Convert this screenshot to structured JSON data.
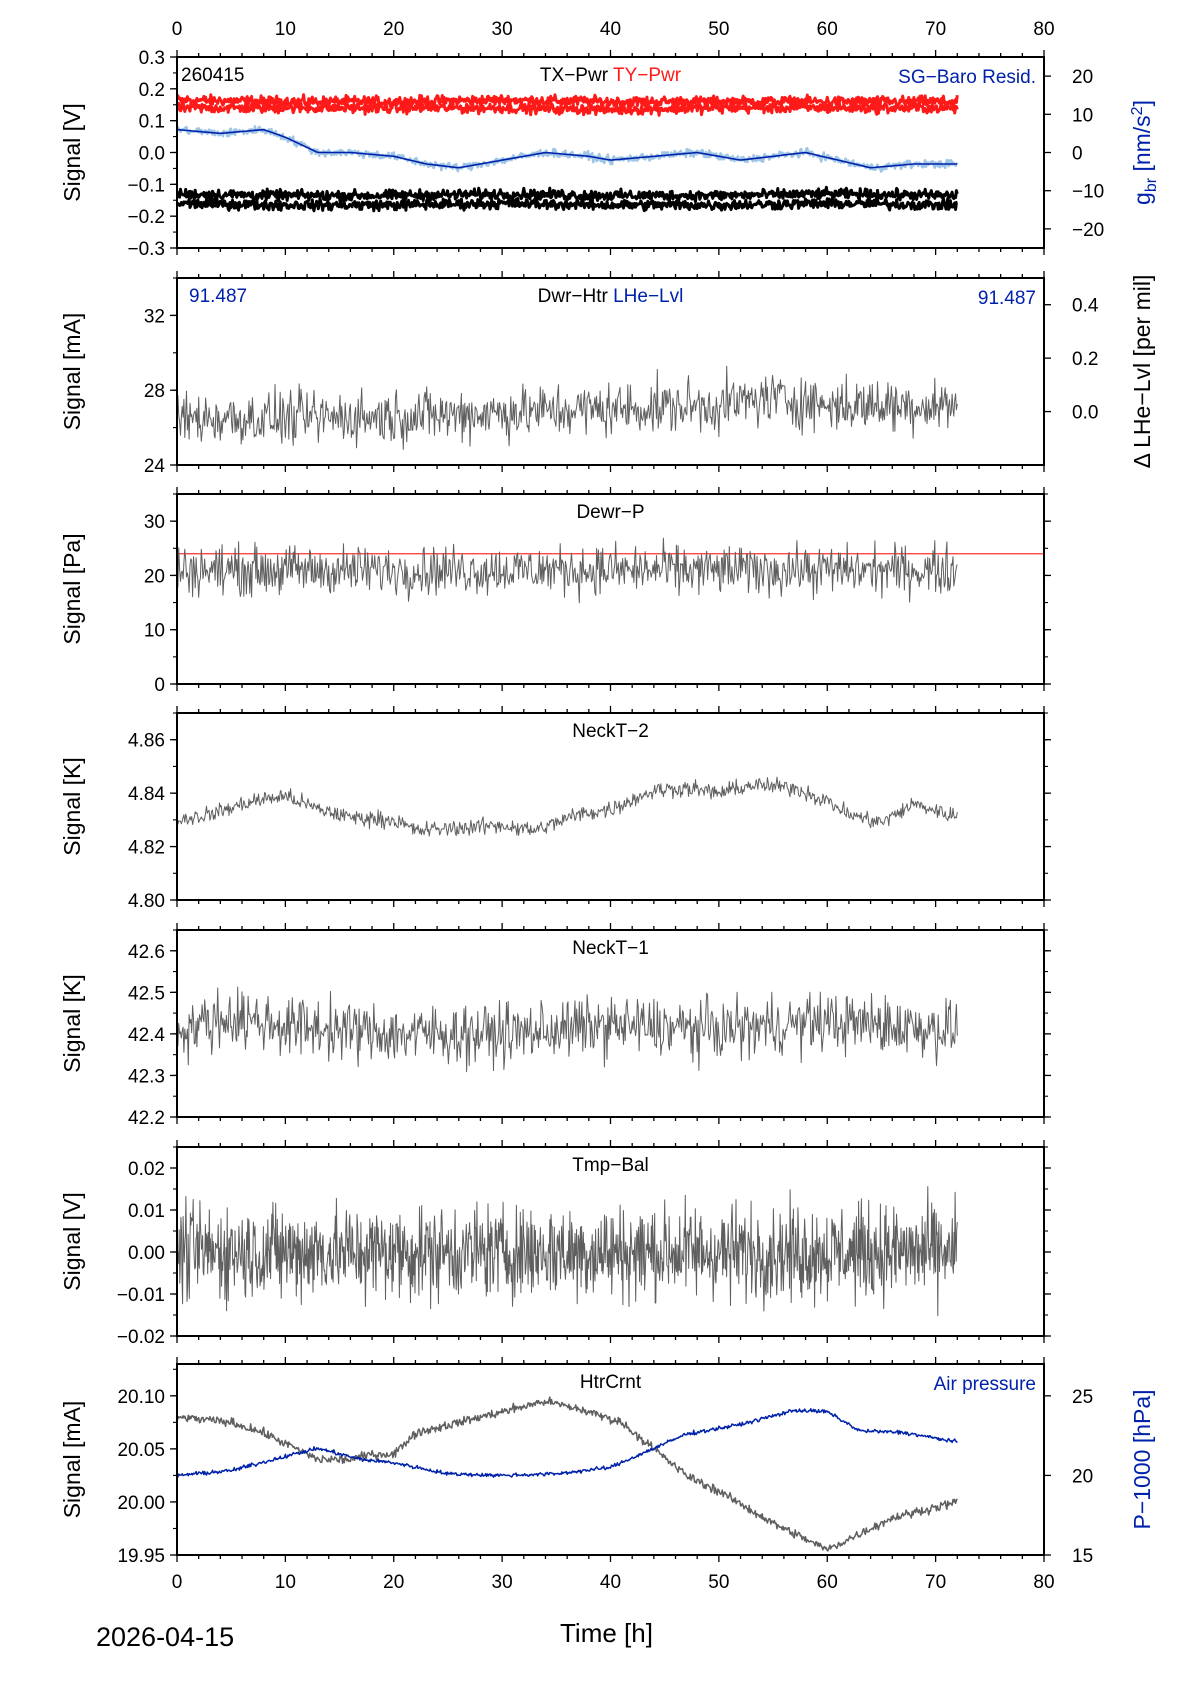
{
  "date_label": "2026-04-15",
  "time_axis": {
    "label": "Time [h]",
    "range": [
      0,
      80
    ],
    "ticks": [
      0,
      10,
      20,
      30,
      40,
      50,
      60,
      70,
      80
    ]
  },
  "colors": {
    "trace": "#5f5f5f",
    "red": "#ff1a1a",
    "blue": "#0022aa",
    "lightblue": "#9fc6e6",
    "black": "#000000",
    "refline": "#ff3030"
  },
  "chart_data": [
    {
      "id": "p1",
      "type": "line",
      "title_parts": [
        {
          "text": "TX−Pwr",
          "color": "#000000"
        },
        {
          "text": "TY−Pwr",
          "color": "#ff1a1a"
        }
      ],
      "corner_label_left": "260415",
      "corner_label_right": "SG−Baro Resid.",
      "ylabel": "Signal [V]",
      "ylim": [
        -0.3,
        0.3
      ],
      "yticks": [
        -0.3,
        -0.2,
        -0.1,
        0.0,
        0.1,
        0.2,
        0.3
      ],
      "ytick_labels": [
        "−0.3",
        "−0.2",
        "−0.1",
        "0.0",
        "0.1",
        "0.2",
        "0.3"
      ],
      "y2label": "g_br [nm/s^2]",
      "y2lim": [
        -25,
        25
      ],
      "y2ticks": [
        -20,
        -10,
        0,
        10,
        20
      ],
      "y2tick_labels": [
        "−20",
        "−10",
        "0",
        "10",
        "20"
      ],
      "series": [
        {
          "name": "TY-Pwr upper",
          "axis": "left",
          "color": "#ff1a1a",
          "width": 3,
          "x": [
            0,
            10,
            20,
            30,
            40,
            50,
            60,
            72
          ],
          "y": [
            0.165,
            0.16,
            0.16,
            0.165,
            0.16,
            0.16,
            0.16,
            0.16
          ],
          "noise": 0.008
        },
        {
          "name": "TY-Pwr lower",
          "axis": "left",
          "color": "#ff1a1a",
          "width": 3,
          "x": [
            0,
            10,
            20,
            30,
            40,
            50,
            60,
            72
          ],
          "y": [
            0.14,
            0.14,
            0.14,
            0.14,
            0.135,
            0.14,
            0.14,
            0.14
          ],
          "noise": 0.008
        },
        {
          "name": "TX-Pwr upper",
          "axis": "left",
          "color": "#000000",
          "width": 3,
          "x": [
            0,
            10,
            20,
            30,
            40,
            50,
            60,
            72
          ],
          "y": [
            -0.13,
            -0.135,
            -0.135,
            -0.13,
            -0.135,
            -0.135,
            -0.13,
            -0.135
          ],
          "noise": 0.008
        },
        {
          "name": "TX-Pwr lower",
          "axis": "left",
          "color": "#000000",
          "width": 3,
          "x": [
            0,
            10,
            20,
            30,
            40,
            50,
            60,
            72
          ],
          "y": [
            -0.16,
            -0.165,
            -0.165,
            -0.16,
            -0.165,
            -0.165,
            -0.16,
            -0.165
          ],
          "noise": 0.008
        },
        {
          "name": "SG-Baro Resid. raw",
          "axis": "right",
          "color": "#9fc6e6",
          "width": 2.5,
          "x": [
            0,
            4,
            8,
            10,
            13,
            16,
            20,
            23,
            26,
            30,
            34,
            38,
            40,
            44,
            48,
            52,
            55,
            58,
            61,
            64,
            68,
            72
          ],
          "y": [
            6,
            5,
            6,
            4,
            0,
            0,
            -1,
            -3,
            -4,
            -2,
            0,
            -1,
            -2,
            -1,
            0,
            -2,
            -1,
            0,
            -2,
            -4,
            -3,
            -3
          ],
          "noise": 0.5
        },
        {
          "name": "SG-Baro Resid.",
          "axis": "right",
          "color": "#0022aa",
          "width": 1.6,
          "x": [
            0,
            4,
            8,
            10,
            13,
            16,
            20,
            23,
            26,
            30,
            34,
            38,
            40,
            44,
            48,
            52,
            55,
            58,
            61,
            64,
            68,
            72
          ],
          "y": [
            6,
            5,
            6,
            4,
            0,
            0,
            -1,
            -3,
            -4,
            -2,
            0,
            -1,
            -2,
            -1,
            0,
            -2,
            -1,
            0,
            -2,
            -4,
            -3,
            -3
          ],
          "noise": 0
        }
      ]
    },
    {
      "id": "p2",
      "type": "line",
      "title_parts": [
        {
          "text": "Dwr−Htr",
          "color": "#000000"
        },
        {
          "text": "LHe−Lvl",
          "color": "#0022aa"
        }
      ],
      "corner_label_left": "91.487",
      "corner_label_right": "91.487",
      "ylabel": "Signal [mA]",
      "ylim": [
        24,
        34
      ],
      "yticks": [
        24,
        28,
        32
      ],
      "ytick_labels": [
        "24",
        "28",
        "32"
      ],
      "y2label": "Δ LHe−Lvl [per mil]",
      "y2lim": [
        -0.2,
        0.5
      ],
      "y2ticks": [
        0.0,
        0.2,
        0.4
      ],
      "y2tick_labels": [
        "0.0",
        "0.2",
        "0.4"
      ],
      "series": [
        {
          "name": "Dwr-Htr",
          "axis": "left",
          "color": "#5f5f5f",
          "width": 1,
          "x": [
            0,
            10,
            20,
            30,
            40,
            50,
            55,
            60,
            66,
            72
          ],
          "y": [
            26.5,
            26.5,
            26.6,
            26.8,
            27.0,
            27.2,
            27.6,
            27.2,
            27.2,
            27.2
          ],
          "noise": 0.7
        }
      ]
    },
    {
      "id": "p3",
      "type": "line",
      "title_parts": [
        {
          "text": "Dewr−P",
          "color": "#000000"
        }
      ],
      "ylabel": "Signal [Pa]",
      "ylim": [
        0,
        35
      ],
      "yticks": [
        0,
        10,
        20,
        30
      ],
      "ytick_labels": [
        "0",
        "10",
        "20",
        "30"
      ],
      "reference_line": {
        "y": 24,
        "color": "#ff3030"
      },
      "series": [
        {
          "name": "Dewr-P",
          "axis": "left",
          "color": "#5f5f5f",
          "width": 1,
          "x": [
            0,
            72
          ],
          "y": [
            21,
            21
          ],
          "noise": 2.2
        }
      ]
    },
    {
      "id": "p4",
      "type": "line",
      "title_parts": [
        {
          "text": "NeckT−2",
          "color": "#000000"
        }
      ],
      "ylabel": "Signal [K]",
      "ylim": [
        4.8,
        4.87
      ],
      "yticks": [
        4.8,
        4.82,
        4.84,
        4.86
      ],
      "ytick_labels": [
        "4.80",
        "4.82",
        "4.84",
        "4.86"
      ],
      "series": [
        {
          "name": "NeckT-2",
          "axis": "left",
          "color": "#5f5f5f",
          "width": 1,
          "x": [
            0,
            3,
            7,
            10,
            13,
            16,
            20,
            22,
            26,
            30,
            33,
            37,
            40,
            44,
            47,
            50,
            53,
            57,
            60,
            62,
            65,
            68,
            72
          ],
          "y": [
            4.83,
            4.832,
            4.837,
            4.839,
            4.834,
            4.831,
            4.83,
            4.826,
            4.827,
            4.828,
            4.826,
            4.832,
            4.834,
            4.841,
            4.842,
            4.84,
            4.843,
            4.842,
            4.837,
            4.832,
            4.829,
            4.836,
            4.831
          ],
          "noise": 0.0015
        }
      ]
    },
    {
      "id": "p5",
      "type": "line",
      "title_parts": [
        {
          "text": "NeckT−1",
          "color": "#000000"
        }
      ],
      "ylabel": "Signal [K]",
      "ylim": [
        42.2,
        42.65
      ],
      "yticks": [
        42.2,
        42.3,
        42.4,
        42.5,
        42.6
      ],
      "ytick_labels": [
        "42.2",
        "42.3",
        "42.4",
        "42.5",
        "42.6"
      ],
      "series": [
        {
          "name": "NeckT-1",
          "axis": "left",
          "color": "#5f5f5f",
          "width": 1,
          "x": [
            0,
            5,
            10,
            20,
            30,
            40,
            50,
            60,
            72
          ],
          "y": [
            42.41,
            42.44,
            42.42,
            42.4,
            42.4,
            42.42,
            42.41,
            42.43,
            42.41
          ],
          "noise": 0.035
        }
      ]
    },
    {
      "id": "p6",
      "type": "line",
      "title_parts": [
        {
          "text": "Tmp−Bal",
          "color": "#000000"
        }
      ],
      "ylabel": "Signal [V]",
      "ylim": [
        -0.02,
        0.025
      ],
      "yticks": [
        -0.02,
        -0.01,
        0.0,
        0.01,
        0.02
      ],
      "ytick_labels": [
        "−0.02",
        "−0.01",
        "0.00",
        "0.01",
        "0.02"
      ],
      "series": [
        {
          "name": "Tmp-Bal",
          "axis": "left",
          "color": "#5f5f5f",
          "width": 1,
          "x": [
            0,
            72
          ],
          "y": [
            0.0,
            0.0
          ],
          "noise": 0.0055,
          "dense": true
        }
      ]
    },
    {
      "id": "p7",
      "type": "line",
      "title_parts": [
        {
          "text": "HtrCrnt",
          "color": "#000000"
        }
      ],
      "corner_label_right": "Air pressure",
      "ylabel": "Signal [mA]",
      "ylim": [
        19.95,
        20.13
      ],
      "yticks": [
        19.95,
        20.0,
        20.05,
        20.1
      ],
      "ytick_labels": [
        "19.95",
        "20.00",
        "20.05",
        "20.10"
      ],
      "y2label": "P−1000 [hPa]",
      "y2lim": [
        15,
        27
      ],
      "y2ticks": [
        15,
        20,
        25
      ],
      "y2tick_labels": [
        "15",
        "20",
        "25"
      ],
      "series": [
        {
          "name": "HtrCrnt",
          "axis": "left",
          "color": "#5f5f5f",
          "width": 1.5,
          "x": [
            0,
            5,
            8,
            10,
            13,
            16,
            18,
            20,
            22,
            26,
            30,
            34,
            38,
            41,
            44,
            47,
            50,
            55,
            58,
            60,
            63,
            66,
            70,
            72
          ],
          "y": [
            20.08,
            20.075,
            20.065,
            20.055,
            20.04,
            20.04,
            20.045,
            20.045,
            20.065,
            20.075,
            20.085,
            20.095,
            20.085,
            20.075,
            20.05,
            20.025,
            20.01,
            19.98,
            19.965,
            19.955,
            19.97,
            19.985,
            19.995,
            20.0
          ],
          "noise": 0.002
        },
        {
          "name": "Air pressure",
          "axis": "right",
          "color": "#0022aa",
          "width": 1.5,
          "x": [
            0,
            5,
            10,
            13,
            17,
            20,
            25,
            30,
            35,
            40,
            44,
            47,
            52,
            57,
            60,
            63,
            67,
            72
          ],
          "y": [
            20.0,
            20.3,
            21.2,
            21.7,
            21.0,
            20.8,
            20.1,
            20.0,
            20.1,
            20.5,
            21.7,
            22.6,
            23.2,
            24.1,
            24.0,
            22.8,
            22.7,
            22.1
          ],
          "noise": 0.06
        }
      ]
    }
  ]
}
